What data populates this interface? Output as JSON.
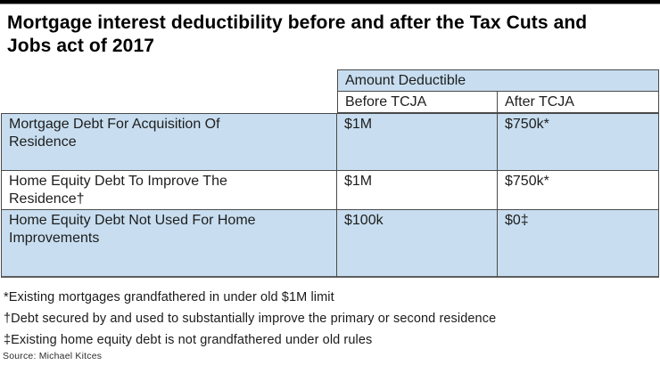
{
  "title": {
    "line1": "Mortgage interest deductibility before and after the Tax Cuts and",
    "line2": "Jobs act of 2017"
  },
  "chart_data": {
    "type": "table",
    "title": "Mortgage interest deductibility before and after the Tax Cuts and Jobs act of 2017",
    "column_group_header": "Amount Deductible",
    "columns": [
      "Before TCJA",
      "After TCJA"
    ],
    "rows": [
      {
        "label": "Mortgage Debt For Acquisition Of Residence",
        "before_tcja": "$1M",
        "after_tcja": "$750k*"
      },
      {
        "label": "Home Equity Debt To Improve The Residence†",
        "before_tcja": "$1M",
        "after_tcja": "$750k*"
      },
      {
        "label": "Home Equity Debt Not Used For Home Improvements",
        "before_tcja": "$100k",
        "after_tcja": "$0‡"
      }
    ],
    "row_shading": [
      "highlight",
      "none",
      "highlight"
    ],
    "footnotes": [
      "*Existing mortgages grandfathered in under old $1M limit",
      "†Debt secured by and used to substantially improve the primary or second residence",
      "‡Existing home equity debt is not grandfathered under old rules"
    ],
    "source": "Source: Michael Kitces"
  },
  "colors": {
    "row_highlight": "#c8def0",
    "table_border": "#4a4a4a",
    "top_bar": "#000000",
    "text": "#1a1a1a"
  }
}
